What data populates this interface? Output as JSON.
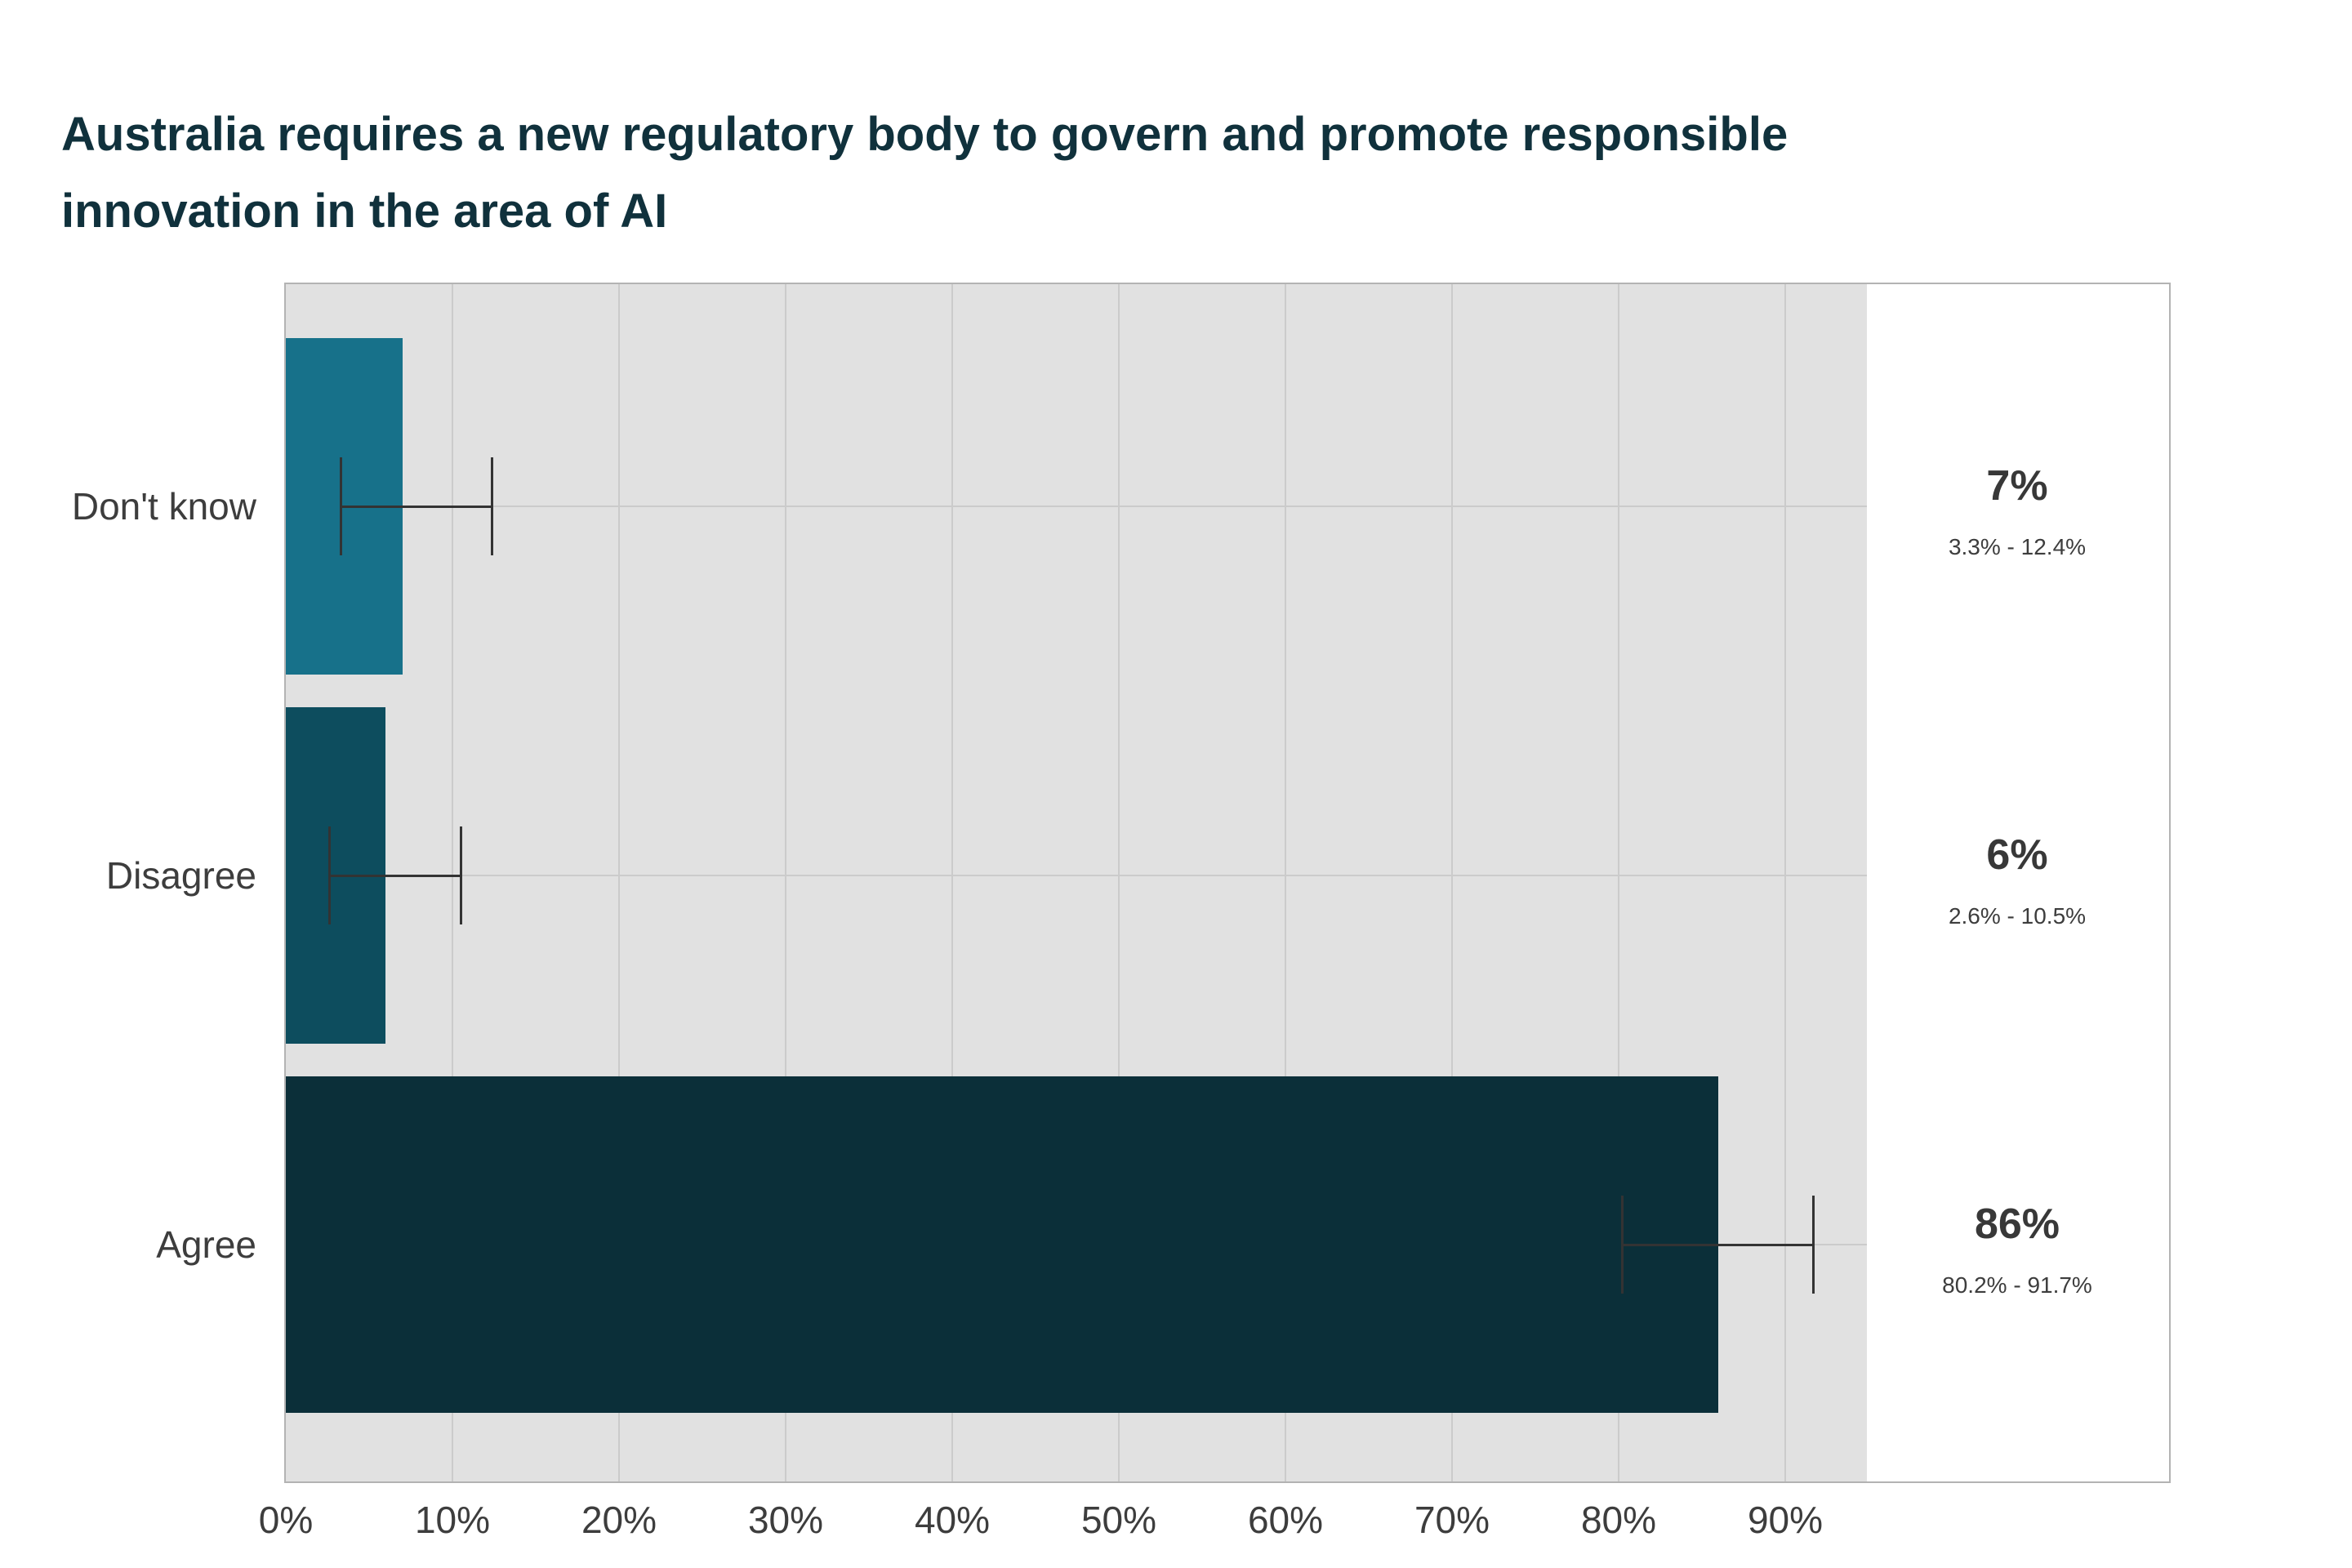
{
  "title": "Australia requires a new regulatory body to govern and promote responsible innovation in the area of AI",
  "chart_data": {
    "type": "bar",
    "orientation": "horizontal",
    "title": "Australia requires a new regulatory body to govern and promote responsible innovation in the area of AI",
    "categories": [
      "Don't know",
      "Disagree",
      "Agree"
    ],
    "values": [
      7,
      6,
      86
    ],
    "value_labels": [
      "7%",
      "6%",
      "86%"
    ],
    "ci_low": [
      3.3,
      2.6,
      80.2
    ],
    "ci_high": [
      12.4,
      10.5,
      91.7
    ],
    "ci_labels": [
      "3.3% - 12.4%",
      "2.6% - 10.5%",
      "80.2% - 91.7%"
    ],
    "bar_colors": [
      "#17718a",
      "#0d4d5e",
      "#0b2f39"
    ],
    "x_ticks": [
      "0%",
      "10%",
      "20%",
      "30%",
      "40%",
      "50%",
      "60%",
      "70%",
      "80%",
      "90%"
    ],
    "x_tick_values": [
      0,
      10,
      20,
      30,
      40,
      50,
      60,
      70,
      80,
      90
    ],
    "xlim": [
      0,
      94.9
    ],
    "xlabel": "",
    "ylabel": "",
    "grid": true,
    "legend": false
  },
  "colors": {
    "title_text": "#10313c",
    "axis_text": "#3d3d3d",
    "annotation_text": "#383838",
    "panel_background": "#e1e1e1",
    "gridline": "#cbcbcb",
    "frame_border": "#b3b3b3",
    "error_bar": "#333333"
  }
}
